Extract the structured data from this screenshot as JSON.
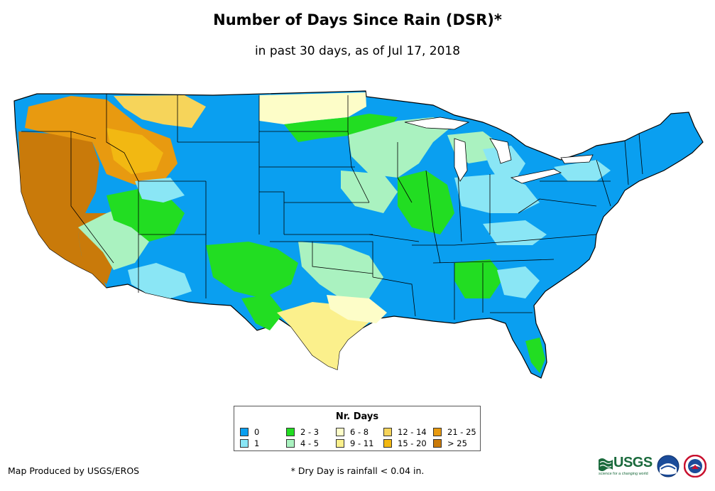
{
  "title": "Number of Days Since Rain (DSR)*",
  "subtitle": "in past 30 days, as of Jul 17, 2018",
  "legend": {
    "title": "Nr. Days",
    "items": [
      {
        "label": "0",
        "color": "#0a9ff0"
      },
      {
        "label": "1",
        "color": "#8ae6f5"
      },
      {
        "label": "2 - 3",
        "color": "#22dd22"
      },
      {
        "label": "4 - 5",
        "color": "#aaf2c0"
      },
      {
        "label": "6 - 8",
        "color": "#fdfdc8"
      },
      {
        "label": "9 - 11",
        "color": "#fbf08c"
      },
      {
        "label": "12 - 14",
        "color": "#f6d45a"
      },
      {
        "label": "15 - 20",
        "color": "#f2b812"
      },
      {
        "label": "21 - 25",
        "color": "#e89a10"
      },
      {
        "label": "> 25",
        "color": "#c97a0a"
      }
    ]
  },
  "credit": "Map Produced by USGS/EROS",
  "footnote": "* Dry Day is rainfall < 0.04 in.",
  "logos": {
    "usgs": "USGS",
    "usgs_tagline": "science for a changing world"
  }
}
